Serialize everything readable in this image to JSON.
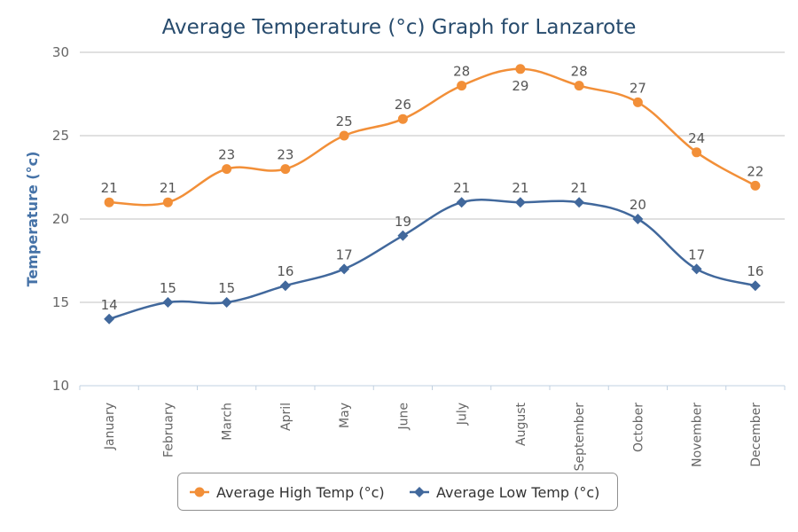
{
  "chart_data": {
    "type": "line",
    "title": "Average Temperature (°c) Graph for Lanzarote",
    "xlabel": "",
    "ylabel": "Temperature (°c)",
    "ylim": [
      10,
      30
    ],
    "yticks": [
      10,
      15,
      20,
      25,
      30
    ],
    "grid": true,
    "legend_position": "bottom-center",
    "categories": [
      "January",
      "February",
      "March",
      "April",
      "May",
      "June",
      "July",
      "August",
      "September",
      "October",
      "November",
      "December"
    ],
    "series": [
      {
        "name": "Average High Temp (°c)",
        "color": "#f28f38",
        "marker": "circle",
        "values": [
          21,
          21,
          23,
          23,
          25,
          26,
          28,
          29,
          28,
          27,
          24,
          22
        ]
      },
      {
        "name": "Average Low Temp (°c)",
        "color": "#41689c",
        "marker": "diamond",
        "values": [
          14,
          15,
          15,
          16,
          17,
          19,
          21,
          21,
          21,
          20,
          17,
          16
        ]
      }
    ]
  }
}
